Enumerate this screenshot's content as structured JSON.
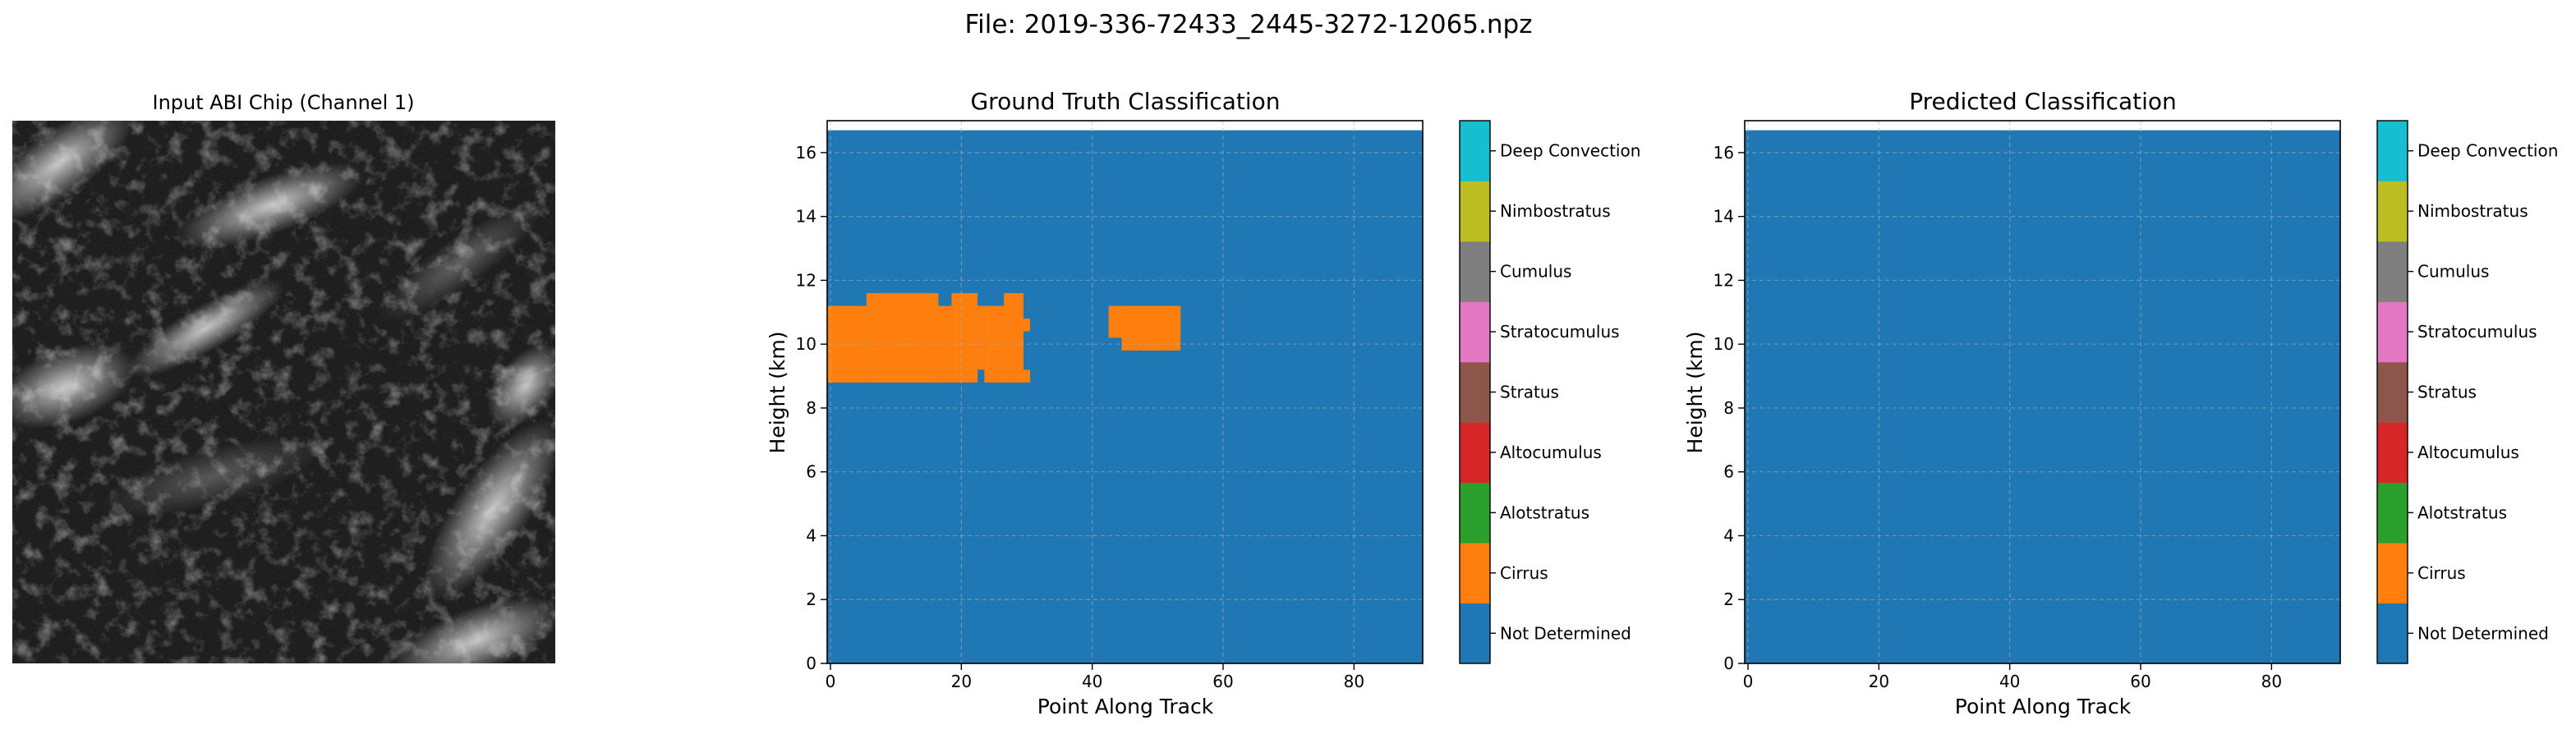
{
  "figure": {
    "suptitle": "File: 2019-336-72433_2445-3272-12065.npz"
  },
  "chart_data": [
    {
      "type": "image",
      "title": "Input ABI Chip (Channel 1)",
      "colormap": "gray",
      "axes_visible": false
    },
    {
      "type": "heatmap",
      "title": "Ground Truth Classification",
      "xlabel": "Point Along Track",
      "ylabel": "Height (km)",
      "xlim": [
        -0.5,
        90.5
      ],
      "ylim": [
        0,
        17
      ],
      "xticks": [
        0,
        20,
        40,
        60,
        80
      ],
      "yticks": [
        0,
        2,
        4,
        6,
        8,
        10,
        12,
        14,
        16
      ],
      "grid": true,
      "data_top_km": 16.7,
      "background_class": "Not Determined",
      "regions": [
        {
          "class": "Cirrus",
          "x": [
            -0.5,
            5.5
          ],
          "y": [
            8.8,
            11.2
          ]
        },
        {
          "class": "Cirrus",
          "x": [
            5.5,
            16.5
          ],
          "y": [
            8.8,
            11.6
          ]
        },
        {
          "class": "Cirrus",
          "x": [
            16.5,
            18.5
          ],
          "y": [
            8.8,
            11.2
          ]
        },
        {
          "class": "Cirrus",
          "x": [
            18.5,
            22.5
          ],
          "y": [
            8.8,
            11.6
          ]
        },
        {
          "class": "Cirrus",
          "x": [
            22.5,
            23.5
          ],
          "y": [
            9.2,
            11.2
          ]
        },
        {
          "class": "Cirrus",
          "x": [
            23.5,
            25.5
          ],
          "y": [
            8.8,
            11.2
          ]
        },
        {
          "class": "Cirrus",
          "x": [
            25.5,
            27.5
          ],
          "y": [
            8.8,
            11.6
          ]
        },
        {
          "class": "Cirrus",
          "x": [
            27.5,
            29.5
          ],
          "y": [
            8.8,
            11.6
          ]
        },
        {
          "class": "Cirrus",
          "x": [
            29.5,
            30.5
          ],
          "y": [
            8.8,
            9.2
          ]
        },
        {
          "class": "Cirrus",
          "x": [
            29.5,
            30.5
          ],
          "y": [
            10.4,
            10.8
          ]
        },
        {
          "class": "Cirrus",
          "x": [
            42.5,
            44.5
          ],
          "y": [
            10.2,
            11.2
          ]
        },
        {
          "class": "Cirrus",
          "x": [
            44.5,
            53.5
          ],
          "y": [
            9.8,
            11.2
          ]
        }
      ],
      "gaps": [
        {
          "x": [
            22.5,
            23.5
          ],
          "y": [
            8.8,
            9.2
          ]
        },
        {
          "x": [
            16.5,
            18.5
          ],
          "y": [
            11.2,
            11.6
          ]
        },
        {
          "x": [
            22.5,
            23.5
          ],
          "y": [
            11.2,
            11.6
          ]
        },
        {
          "x": [
            25.5,
            26.5
          ],
          "y": [
            11.2,
            11.6
          ]
        },
        {
          "x": [
            29.5,
            30.5
          ],
          "y": [
            11.2,
            11.6
          ]
        },
        {
          "x": [
            29.5,
            30.5
          ],
          "y": [
            10.8,
            11.2
          ]
        },
        {
          "x": [
            29.5,
            30.5
          ],
          "y": [
            9.2,
            10.4
          ]
        }
      ]
    },
    {
      "type": "heatmap",
      "title": "Predicted Classification",
      "xlabel": "Point Along Track",
      "ylabel": "Height (km)",
      "xlim": [
        -0.5,
        90.5
      ],
      "ylim": [
        0,
        17
      ],
      "xticks": [
        0,
        20,
        40,
        60,
        80
      ],
      "yticks": [
        0,
        2,
        4,
        6,
        8,
        10,
        12,
        14,
        16
      ],
      "grid": true,
      "data_top_km": 16.7,
      "background_class": "Not Determined",
      "regions": [],
      "gaps": []
    }
  ],
  "colorbar": {
    "classes": [
      {
        "label": "Not Determined",
        "color": "#1f77b4"
      },
      {
        "label": "Cirrus",
        "color": "#ff7f0e"
      },
      {
        "label": "Alotstratus",
        "color": "#2ca02c"
      },
      {
        "label": "Altocumulus",
        "color": "#d62728"
      },
      {
        "label": "Stratus",
        "color": "#8c564b"
      },
      {
        "label": "Stratocumulus",
        "color": "#e377c2"
      },
      {
        "label": "Cumulus",
        "color": "#7f7f7f"
      },
      {
        "label": "Nimbostratus",
        "color": "#bcbd22"
      },
      {
        "label": "Deep Convection",
        "color": "#17becf"
      }
    ]
  },
  "colors": {
    "not_determined": "#1f77b4",
    "cirrus": "#ff7f0e",
    "grid": "#b0b0b0"
  }
}
